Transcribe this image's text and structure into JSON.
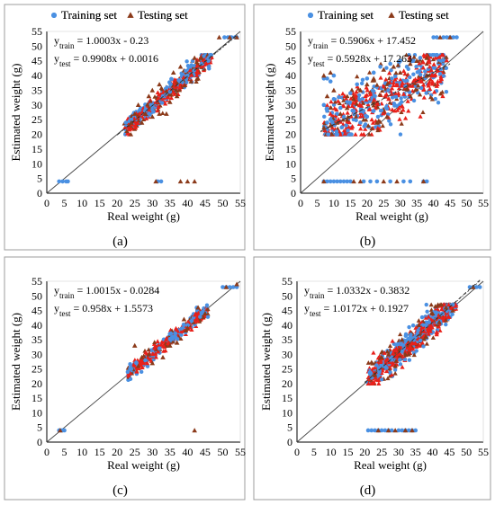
{
  "colors": {
    "training": "#4a90e2",
    "testing": "#8b3a1a",
    "testing_cluster": "#e8201a",
    "frame": "#9c9c9c"
  },
  "legend": {
    "training": "Training set",
    "testing": "Testing set"
  },
  "axes": {
    "xlabel": "Real weight (g)",
    "ylabel": "Estimated weight (g)",
    "ticks": [
      "0",
      "5",
      "10",
      "15",
      "20",
      "25",
      "30",
      "35",
      "40",
      "45",
      "50",
      "55"
    ],
    "range": [
      0,
      55
    ]
  },
  "chart_data": [
    {
      "type": "scatter",
      "panel": "(a)",
      "equations": {
        "train": "= 1.0003x - 0.23",
        "test": "= 0.9908x + 0.0016"
      },
      "fits": {
        "train": [
          1.0003,
          -0.23
        ],
        "test": [
          0.9908,
          0.0016
        ]
      },
      "spread": 1.6,
      "series": [
        {
          "name": "Training set",
          "points": [
            [
              3.5,
              4
            ],
            [
              4.5,
              4
            ],
            [
              5.5,
              4
            ],
            [
              6,
              4
            ],
            [
              31.5,
              4
            ],
            [
              32.5,
              4
            ],
            [
              50.5,
              53
            ],
            [
              51.5,
              53
            ],
            [
              52.5,
              53
            ],
            [
              53.5,
              53
            ],
            [
              54,
              53
            ],
            [
              22.5,
              24
            ],
            [
              23.5,
              24.5
            ],
            [
              24,
              25
            ],
            [
              30,
              30
            ],
            [
              35,
              34.5
            ],
            [
              40,
              40
            ],
            [
              44,
              44
            ],
            [
              46,
              46
            ],
            [
              38,
              38
            ],
            [
              33,
              33
            ],
            [
              28,
              28
            ]
          ]
        },
        {
          "name": "Testing set",
          "points": [
            [
              31,
              4
            ],
            [
              38,
              4
            ],
            [
              40,
              4
            ],
            [
              42,
              4
            ],
            [
              49,
              53
            ],
            [
              52,
              53
            ],
            [
              54,
              53
            ],
            [
              25,
              27
            ],
            [
              28,
              27
            ],
            [
              30,
              26
            ],
            [
              32,
              27
            ],
            [
              34,
              27
            ],
            [
              26,
              30
            ],
            [
              30,
              35
            ],
            [
              32,
              37
            ],
            [
              36,
              41
            ],
            [
              38,
              43
            ],
            [
              42,
              46
            ],
            [
              44,
              46
            ],
            [
              43,
              39
            ],
            [
              41,
              38
            ],
            [
              37,
              33
            ],
            [
              35,
              31
            ],
            [
              29,
              33
            ],
            [
              27,
              24
            ],
            [
              24,
              24
            ]
          ]
        }
      ],
      "cluster": {
        "x_range": [
          22,
          47
        ],
        "count": 520
      }
    },
    {
      "type": "scatter",
      "panel": "(b)",
      "equations": {
        "train": "= 0.5906x + 17.452",
        "test": "= 0.5928x + 17.263"
      },
      "fits": {
        "train": [
          0.5906,
          17.452
        ],
        "test": [
          0.5928,
          17.263
        ]
      },
      "spread": 5.5,
      "series": [
        {
          "name": "Training set",
          "points": [
            [
              7,
              4
            ],
            [
              8,
              4
            ],
            [
              9,
              4
            ],
            [
              10,
              4
            ],
            [
              11,
              4
            ],
            [
              12,
              4
            ],
            [
              13,
              4
            ],
            [
              14,
              4
            ],
            [
              15,
              4
            ],
            [
              19,
              4
            ],
            [
              21,
              4
            ],
            [
              23,
              4
            ],
            [
              27,
              4
            ],
            [
              31,
              4
            ],
            [
              33,
              4
            ],
            [
              37,
              4
            ],
            [
              38,
              4
            ],
            [
              40,
              53
            ],
            [
              41,
              53
            ],
            [
              43,
              53
            ],
            [
              44,
              53
            ],
            [
              45,
              53
            ],
            [
              46,
              53
            ],
            [
              47,
              53
            ],
            [
              7,
              39
            ],
            [
              8,
              39
            ],
            [
              9,
              38
            ],
            [
              10,
              40
            ],
            [
              8,
              24
            ],
            [
              9,
              25
            ],
            [
              11,
              27
            ],
            [
              12,
              29
            ],
            [
              14,
              31
            ],
            [
              15,
              34
            ],
            [
              17,
              37
            ],
            [
              20,
              39
            ],
            [
              22,
              41
            ],
            [
              24,
              43
            ],
            [
              27,
              44
            ],
            [
              30,
              45
            ],
            [
              32,
              43
            ],
            [
              34,
              45
            ],
            [
              36,
              46
            ],
            [
              7,
              30
            ],
            [
              8,
              28
            ],
            [
              10,
              32
            ],
            [
              13,
              26
            ],
            [
              16,
              28
            ],
            [
              18,
              24
            ],
            [
              20,
              26
            ],
            [
              22,
              28
            ]
          ]
        },
        {
          "name": "Testing set",
          "points": [
            [
              7,
              4
            ],
            [
              16,
              4
            ],
            [
              18,
              4
            ],
            [
              25,
              4
            ],
            [
              29,
              4
            ],
            [
              37,
              4
            ],
            [
              42,
              53
            ],
            [
              45,
              53
            ],
            [
              7,
              40
            ],
            [
              9,
              41
            ],
            [
              8,
              33
            ],
            [
              10,
              35
            ],
            [
              12,
              27
            ],
            [
              14,
              29
            ],
            [
              16,
              32
            ],
            [
              18,
              35
            ],
            [
              20,
              37
            ],
            [
              22,
              39
            ],
            [
              25,
              42
            ],
            [
              28,
              43
            ],
            [
              30,
              41
            ],
            [
              33,
              44
            ],
            [
              35,
              45
            ],
            [
              38,
              46
            ],
            [
              11,
              24
            ],
            [
              14,
              25
            ],
            [
              19,
              25
            ],
            [
              23,
              24
            ],
            [
              26,
              26
            ],
            [
              9,
              23
            ]
          ]
        }
      ],
      "cluster": {
        "x_range": [
          7,
          44
        ],
        "count": 620
      }
    },
    {
      "type": "scatter",
      "panel": "(c)",
      "equations": {
        "train": "= 1.0015x - 0.0284",
        "test": "= 0.958x + 1.5573"
      },
      "fits": {
        "train": [
          1.0015,
          -0.0284
        ],
        "test": [
          0.958,
          1.5573
        ]
      },
      "spread": 1.3,
      "series": [
        {
          "name": "Training set",
          "points": [
            [
              3.5,
              4
            ],
            [
              4,
              4
            ],
            [
              4.5,
              4
            ],
            [
              5,
              4
            ],
            [
              50,
              53
            ],
            [
              51,
              53
            ],
            [
              52,
              53
            ],
            [
              53,
              53
            ],
            [
              54,
              53
            ],
            [
              23,
              24
            ],
            [
              24,
              25
            ],
            [
              28,
              28
            ],
            [
              32,
              32
            ],
            [
              36,
              36
            ],
            [
              40,
              40
            ],
            [
              44,
              44
            ]
          ]
        },
        {
          "name": "Testing set",
          "points": [
            [
              3.8,
              4
            ],
            [
              42,
              4
            ],
            [
              51,
              53
            ],
            [
              54,
              54
            ],
            [
              25,
              33
            ],
            [
              27,
              29
            ],
            [
              30,
              27
            ],
            [
              33,
              29
            ],
            [
              37,
              34
            ],
            [
              39,
              42
            ],
            [
              43,
              46
            ],
            [
              45,
              44
            ],
            [
              40,
              39
            ],
            [
              35,
              33
            ],
            [
              29,
              30
            ],
            [
              26,
              26
            ]
          ]
        }
      ],
      "cluster": {
        "x_range": [
          23,
          46
        ],
        "count": 400
      }
    },
    {
      "type": "scatter",
      "panel": "(d)",
      "equations": {
        "train": "= 1.0332x - 0.3832",
        "test": "= 1.0172x + 0.1927"
      },
      "fits": {
        "train": [
          1.0332,
          -0.3832
        ],
        "test": [
          1.0172,
          0.1927
        ]
      },
      "spread": 2.6,
      "series": [
        {
          "name": "Training set",
          "points": [
            [
              21,
              4
            ],
            [
              22,
              4
            ],
            [
              23,
              4
            ],
            [
              24,
              4
            ],
            [
              25,
              4
            ],
            [
              26,
              4
            ],
            [
              27,
              4
            ],
            [
              28,
              4
            ],
            [
              30,
              4
            ],
            [
              31,
              4
            ],
            [
              32,
              4
            ],
            [
              33,
              4
            ],
            [
              34,
              4
            ],
            [
              35,
              4
            ],
            [
              51,
              53
            ],
            [
              52,
              53
            ],
            [
              53,
              53
            ],
            [
              54,
              53
            ],
            [
              22,
              22
            ],
            [
              25,
              26
            ],
            [
              28,
              29
            ],
            [
              31,
              31
            ],
            [
              35,
              36
            ],
            [
              39,
              41
            ],
            [
              43,
              44
            ],
            [
              46,
              47
            ]
          ]
        },
        {
          "name": "Testing set",
          "points": [
            [
              24,
              4
            ],
            [
              27,
              4
            ],
            [
              29,
              4
            ],
            [
              32,
              4
            ],
            [
              34,
              4
            ],
            [
              52,
              53
            ],
            [
              23,
              23
            ],
            [
              25,
              29
            ],
            [
              27,
              30
            ],
            [
              29,
              26
            ],
            [
              31,
              35
            ],
            [
              33,
              30
            ],
            [
              36,
              40
            ],
            [
              38,
              36
            ],
            [
              40,
              44
            ],
            [
              42,
              41
            ],
            [
              44,
              46
            ],
            [
              46,
              45
            ]
          ]
        }
      ],
      "cluster": {
        "x_range": [
          21,
          47
        ],
        "count": 750
      }
    }
  ]
}
